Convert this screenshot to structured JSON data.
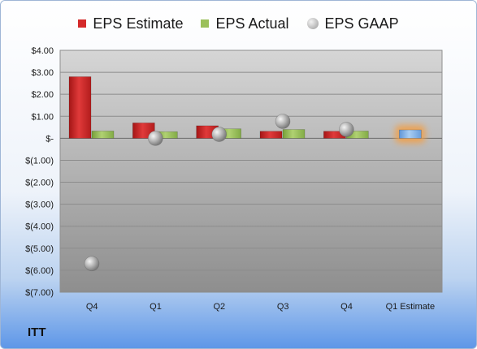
{
  "legend": {
    "estimate_label": "EPS Estimate",
    "actual_label": "EPS Actual",
    "gaap_label": "EPS GAAP"
  },
  "company": "ITT",
  "colors": {
    "estimate": "#d42a2a",
    "actual": "#9bc05b",
    "gaap": "#a9a9a9",
    "future_estimate": "#8db8e8",
    "highlight_glow": "#f0a04b"
  },
  "chart_data": {
    "type": "bar",
    "title": "",
    "xlabel": "",
    "ylabel": "",
    "ylim": [
      -7,
      4
    ],
    "grid": true,
    "legend_position": "top",
    "categories": [
      "Q4",
      "Q1",
      "Q2",
      "Q3",
      "Q4",
      "Q1 Estimate"
    ],
    "y_tick_labels": [
      "$4.00",
      "$3.00",
      "$2.00",
      "$1.00",
      "$-",
      "$(1.00)",
      "$(2.00)",
      "$(3.00)",
      "$(4.00)",
      "$(5.00)",
      "$(6.00)",
      "$(7.00)"
    ],
    "series": [
      {
        "name": "EPS Estimate",
        "values": [
          2.8,
          0.7,
          0.57,
          0.32,
          0.32,
          null
        ]
      },
      {
        "name": "EPS Actual",
        "values": [
          0.33,
          0.3,
          0.43,
          0.4,
          0.33,
          0.38
        ]
      },
      {
        "name": "EPS GAAP",
        "values": [
          -5.7,
          0.0,
          0.18,
          0.77,
          0.4,
          null
        ]
      }
    ],
    "highlight_category": "Q1 Estimate"
  }
}
